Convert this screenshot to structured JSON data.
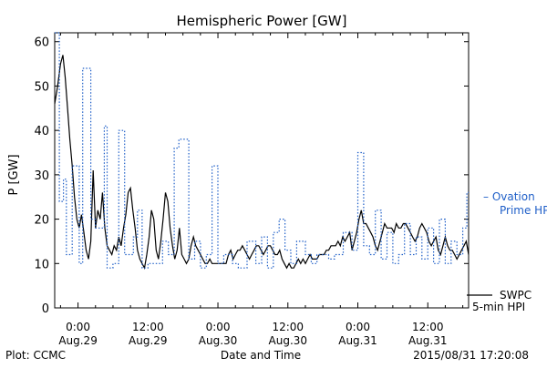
{
  "chart_data": {
    "type": "line",
    "title": "Hemispheric Power [GW]",
    "ylabel": "P [GW]",
    "xlabel": "Date and Time",
    "x_units": "hours since Aug.28 00:00 (2015)",
    "xlim": [
      20.0,
      91.0
    ],
    "ylim": [
      0,
      62
    ],
    "y_ticks": [
      0,
      10,
      20,
      30,
      40,
      50,
      60
    ],
    "x_ticks": [
      {
        "x": 24,
        "time": "0:00",
        "date": "Aug.29"
      },
      {
        "x": 36,
        "time": "12:00",
        "date": "Aug.29"
      },
      {
        "x": 48,
        "time": "0:00",
        "date": "Aug.30"
      },
      {
        "x": 60,
        "time": "12:00",
        "date": "Aug.30"
      },
      {
        "x": 72,
        "time": "0:00",
        "date": "Aug.31"
      },
      {
        "x": 84,
        "time": "12:00",
        "date": "Aug.31"
      }
    ],
    "grid": false,
    "series": [
      {
        "name": "SWPC 5-min HPI",
        "color": "#000000",
        "style": "solid",
        "x": [
          20.0,
          20.5,
          21.0,
          21.4,
          21.8,
          22.2,
          22.6,
          23.0,
          23.4,
          23.8,
          24.2,
          24.6,
          25.0,
          25.4,
          25.8,
          26.2,
          26.6,
          27.0,
          27.4,
          27.8,
          28.2,
          28.6,
          29.0,
          29.4,
          29.8,
          30.2,
          30.6,
          31.0,
          31.4,
          31.8,
          32.2,
          32.6,
          33.0,
          33.4,
          33.8,
          34.2,
          34.6,
          35.0,
          35.4,
          35.8,
          36.2,
          36.6,
          37.0,
          37.4,
          37.8,
          38.2,
          38.6,
          39.0,
          39.4,
          39.8,
          40.2,
          40.6,
          41.0,
          41.4,
          41.8,
          42.2,
          42.6,
          43.0,
          43.4,
          43.8,
          44.2,
          44.6,
          45.0,
          45.4,
          45.8,
          46.2,
          46.6,
          47.0,
          47.4,
          47.8,
          48.2,
          48.6,
          49.0,
          49.4,
          49.8,
          50.2,
          50.6,
          51.0,
          51.4,
          51.8,
          52.2,
          52.6,
          53.0,
          53.4,
          53.8,
          54.2,
          54.6,
          55.0,
          55.4,
          55.8,
          56.2,
          56.6,
          57.0,
          57.4,
          57.8,
          58.2,
          58.6,
          59.0,
          59.4,
          59.8,
          60.2,
          60.6,
          61.0,
          61.4,
          61.8,
          62.2,
          62.6,
          63.0,
          63.4,
          63.8,
          64.2,
          64.6,
          65.0,
          65.4,
          65.8,
          66.2,
          66.6,
          67.0,
          67.4,
          67.8,
          68.2,
          68.6,
          69.0,
          69.4,
          69.8,
          70.2,
          70.6,
          71.0,
          71.4,
          71.8,
          72.2,
          72.6,
          73.0,
          73.4,
          73.8,
          74.2,
          74.6,
          75.0,
          75.4,
          75.8,
          76.2,
          76.6,
          77.0,
          77.4,
          77.8,
          78.2,
          78.6,
          79.0,
          79.4,
          79.8,
          80.2,
          80.6,
          81.0,
          81.4,
          81.8,
          82.2,
          82.6,
          83.0,
          83.4,
          83.8,
          84.2,
          84.6,
          85.0,
          85.4,
          85.8,
          86.2,
          86.6,
          87.0,
          87.4,
          87.8,
          88.2,
          88.6,
          89.0,
          89.4,
          89.8,
          90.2,
          90.6,
          91.0
        ],
        "y": [
          46,
          50,
          55,
          57,
          52,
          45,
          38,
          32,
          25,
          20,
          18,
          21,
          17,
          13,
          11,
          15,
          31,
          18,
          22,
          20,
          26,
          18,
          14,
          13,
          12,
          14,
          13,
          16,
          14,
          18,
          21,
          26,
          27,
          22,
          18,
          13,
          11,
          10,
          9,
          12,
          16,
          22,
          20,
          13,
          11,
          15,
          20,
          26,
          24,
          18,
          14,
          11,
          13,
          18,
          12,
          11,
          10,
          11,
          14,
          16,
          14,
          13,
          12,
          11,
          10,
          10,
          11,
          10,
          10,
          10,
          10,
          10,
          10,
          10,
          12,
          13,
          11,
          12,
          13,
          13,
          14,
          13,
          12,
          11,
          12,
          13,
          14,
          14,
          13,
          12,
          13,
          14,
          14,
          13,
          12,
          12,
          13,
          11,
          10,
          9,
          10,
          9,
          9,
          10,
          11,
          10,
          11,
          10,
          11,
          12,
          11,
          11,
          11,
          12,
          12,
          12,
          13,
          13,
          14,
          14,
          14,
          15,
          14,
          16,
          15,
          16,
          17,
          13,
          15,
          17,
          20,
          22,
          19,
          19,
          18,
          17,
          16,
          14,
          13,
          15,
          17,
          19,
          18,
          18,
          18,
          17,
          19,
          18,
          18,
          19,
          19,
          18,
          17,
          16,
          15,
          16,
          18,
          19,
          18,
          17,
          15,
          14,
          15,
          16,
          13,
          12,
          14,
          16,
          14,
          13,
          13,
          12,
          11,
          12,
          13,
          14,
          15,
          12
        ]
      },
      {
        "name": "Ovation Prime HPI",
        "color": "#1f5fc8",
        "style": "dotted-step",
        "x": [
          20.0,
          20.8,
          21.5,
          22.0,
          23.0,
          24.2,
          24.8,
          26.2,
          27.0,
          28.5,
          29.0,
          30.0,
          31.0,
          32.0,
          32.8,
          33.5,
          34.2,
          35.0,
          36.0,
          37.0,
          38.5,
          39.5,
          40.5,
          41.3,
          43.0,
          44.0,
          45.0,
          46.0,
          47.0,
          48.0,
          49.0,
          50.5,
          51.5,
          53.0,
          54.5,
          55.5,
          56.5,
          57.5,
          58.5,
          59.5,
          60.5,
          61.5,
          63.0,
          64.0,
          65.0,
          66.0,
          67.0,
          68.0,
          69.5,
          71.0,
          72.0,
          73.0,
          74.0,
          75.0,
          76.0,
          77.0,
          78.0,
          79.0,
          80.0,
          81.0,
          82.0,
          83.0,
          84.0,
          85.0,
          86.0,
          87.0,
          88.0,
          89.0,
          90.0,
          90.7,
          91.0
        ],
        "y": [
          62,
          24,
          29,
          12,
          32,
          10,
          54,
          20,
          18,
          41,
          9,
          10,
          40,
          12,
          12,
          16,
          22,
          9,
          10,
          10,
          15,
          12,
          36,
          38,
          11,
          15,
          9,
          12,
          32,
          10,
          12,
          10,
          9,
          15,
          10,
          16,
          9,
          17,
          20,
          13,
          10,
          15,
          12,
          10,
          12,
          12,
          11,
          12,
          17,
          13,
          35,
          14,
          12,
          22,
          11,
          17,
          10,
          12,
          19,
          12,
          16,
          11,
          18,
          10,
          20,
          10,
          15,
          12,
          18,
          26,
          26
        ]
      }
    ],
    "legend": [
      {
        "dash": "——",
        "line1": "SWPC",
        "line2": "5-min HPI",
        "color": "#000000"
      },
      {
        "dash": "–",
        "line1": "Ovation",
        "line2": "Prime HPI",
        "color": "#1f5fc8"
      }
    ],
    "legend_placement": "right"
  },
  "footer": {
    "left": "Plot: CCMC",
    "center": "Date and Time",
    "right": "2015/08/31 17:20:08"
  }
}
